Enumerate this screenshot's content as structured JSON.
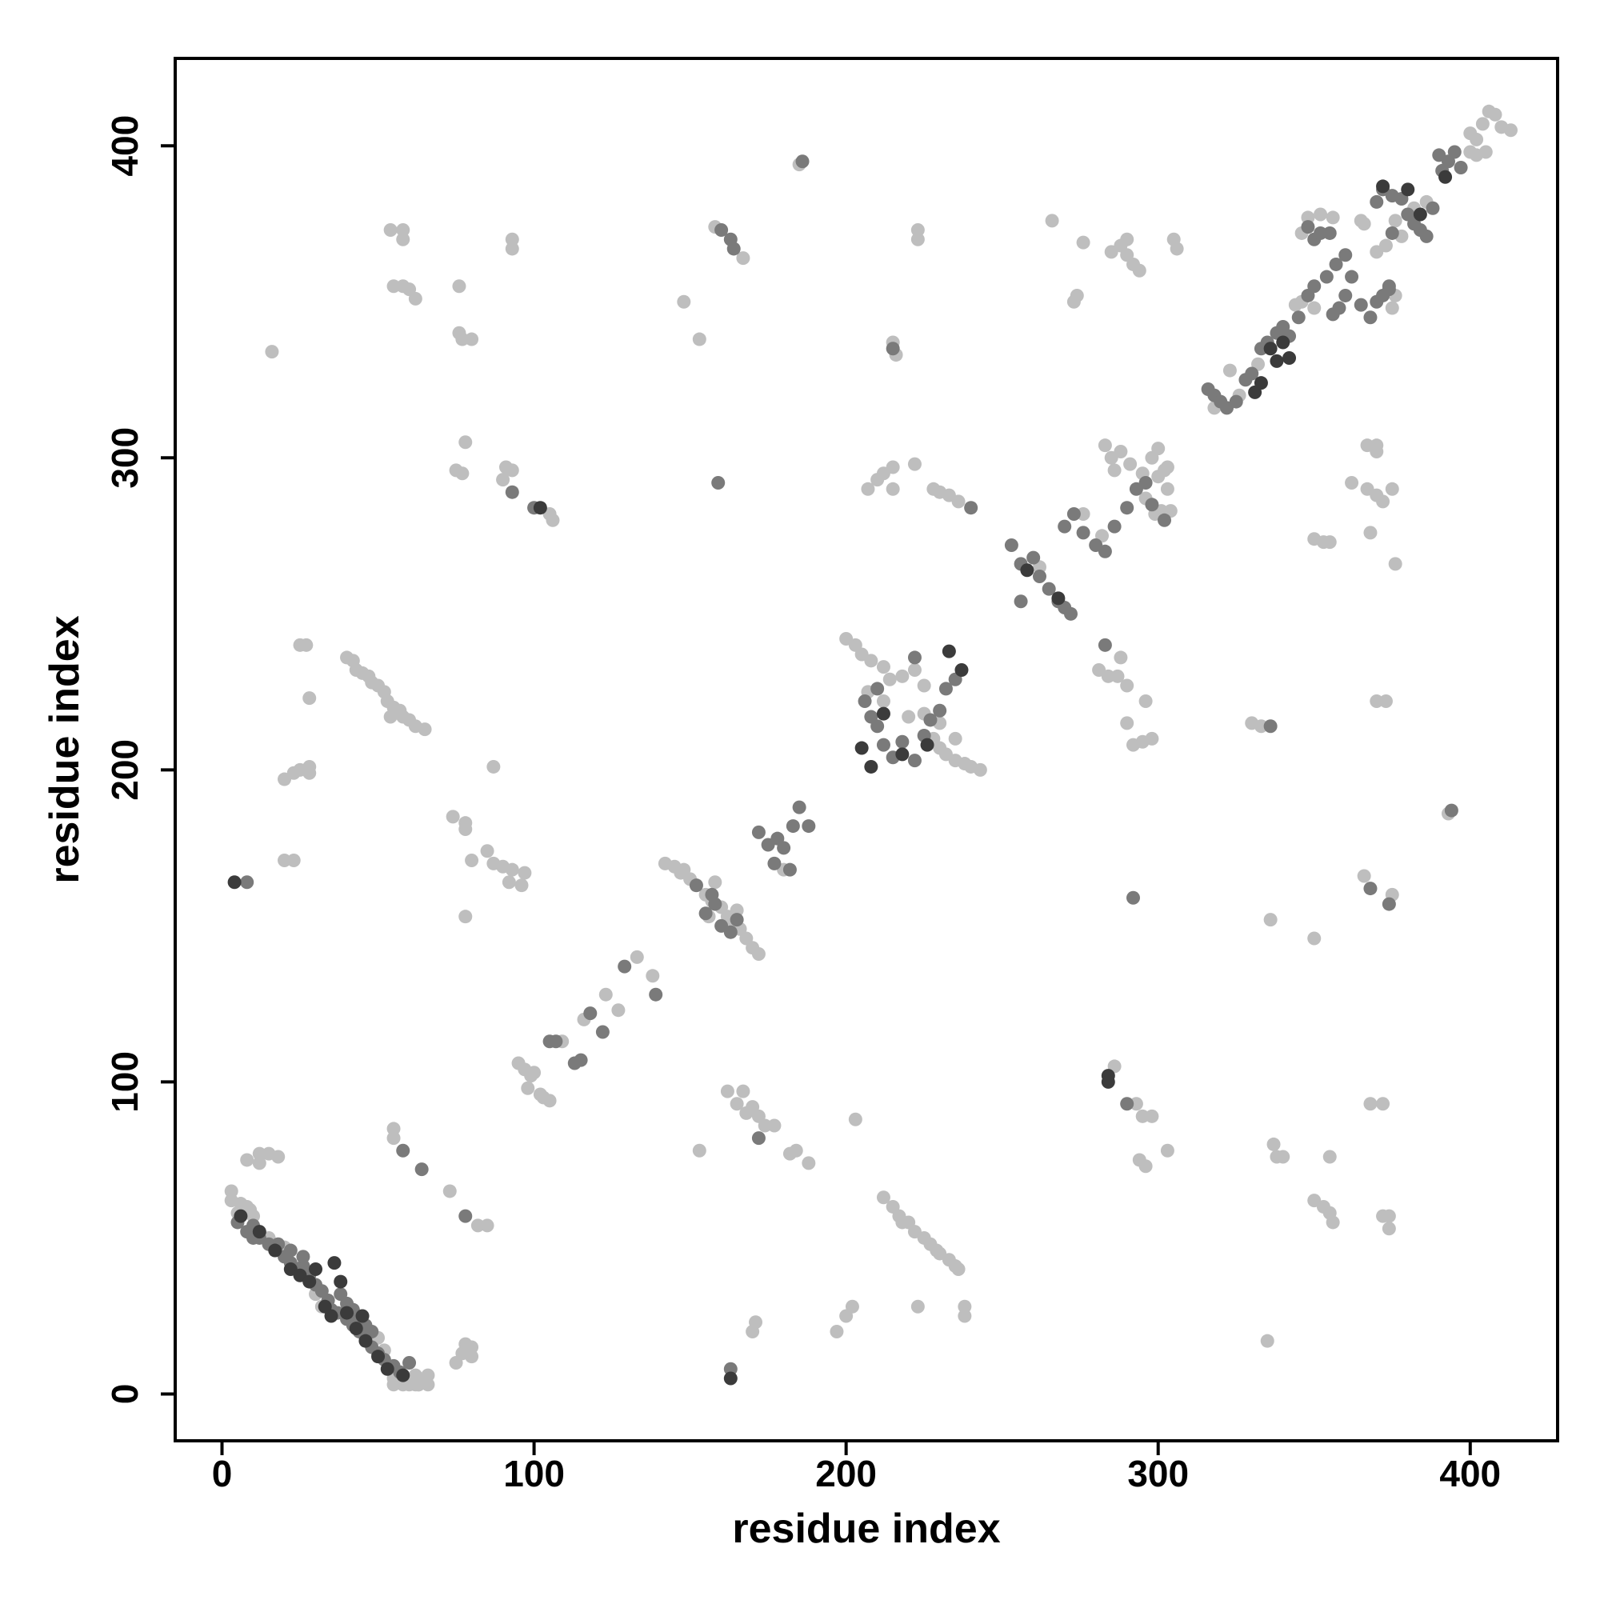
{
  "chart_data": {
    "type": "scatter",
    "x_label": "residue index",
    "y_label": "residue index",
    "xlim": [
      -15,
      428
    ],
    "ylim": [
      -15,
      428
    ],
    "xticks": [
      0,
      100,
      200,
      300,
      400
    ],
    "yticks": [
      0,
      100,
      200,
      300,
      400
    ],
    "grid": false,
    "series": [
      {
        "color": "#bebebe",
        "x": [
          3,
          5,
          8,
          10,
          55,
          58,
          62,
          65,
          63,
          8,
          12,
          15,
          18,
          12,
          75,
          77,
          78,
          80,
          80,
          55,
          55,
          73,
          82,
          85,
          16,
          54,
          58,
          58,
          55,
          58,
          60,
          62,
          76,
          76,
          77,
          80,
          93,
          93,
          75,
          77,
          78,
          91,
          93,
          90,
          105,
          106,
          25,
          27,
          28,
          20,
          23,
          25,
          28,
          28,
          20,
          23,
          74,
          78,
          78,
          80,
          85,
          87,
          90,
          93,
          97,
          96,
          92,
          78,
          87,
          40,
          42,
          43,
          45,
          47,
          48,
          50,
          52,
          53,
          55,
          57,
          58,
          60,
          62,
          65,
          54,
          95,
          97,
          99,
          100,
          98,
          102,
          103,
          105,
          109,
          116,
          123,
          127,
          133,
          138,
          142,
          145,
          147,
          150,
          152,
          155,
          157,
          160,
          162,
          164,
          166,
          168,
          170,
          172,
          148,
          158,
          156,
          165,
          180,
          200,
          203,
          205,
          208,
          212,
          214,
          218,
          222,
          225,
          228,
          230,
          232,
          235,
          238,
          240,
          243,
          207,
          212,
          230,
          235,
          225,
          220,
          203,
          202,
          200,
          197,
          171,
          170,
          184,
          182,
          188,
          162,
          167,
          165,
          170,
          172,
          168,
          174,
          177,
          153,
          212,
          215,
          217,
          220,
          222,
          225,
          227,
          229,
          230,
          233,
          235,
          236,
          218,
          223,
          238,
          238,
          148,
          153,
          158,
          167,
          185,
          223,
          223,
          215,
          216,
          207,
          210,
          212,
          215,
          215,
          222,
          228,
          230,
          233,
          236,
          266,
          273,
          274,
          276,
          285,
          288,
          290,
          292,
          294,
          290,
          305,
          306,
          281,
          284,
          287,
          290,
          288,
          296,
          290,
          292,
          295,
          298,
          262,
          276,
          282,
          285,
          288,
          291,
          295,
          298,
          300,
          302,
          303,
          286,
          283,
          296,
          299,
          301,
          304,
          303,
          300,
          286,
          293,
          295,
          298,
          294,
          296,
          303,
          335,
          337,
          338,
          340,
          336,
          355,
          350,
          353,
          355,
          356,
          350,
          330,
          333,
          370,
          373,
          372,
          374,
          374,
          368,
          372,
          366,
          375,
          393,
          350,
          353,
          355,
          367,
          370,
          372,
          375,
          367,
          370,
          370,
          368,
          376,
          362,
          318,
          323,
          326,
          332,
          344,
          346,
          348,
          352,
          356,
          366,
          370,
          373,
          376,
          378,
          382,
          386,
          400,
          402,
          404,
          406,
          408,
          410,
          413,
          400,
          402,
          405,
          346,
          350,
          365,
          375,
          376,
          3,
          6,
          9,
          15,
          20,
          30,
          32,
          50,
          52,
          58,
          60,
          63,
          66,
          66,
          55,
          62
        ],
        "values": [
          62,
          58,
          60,
          57,
          5,
          3,
          3,
          5,
          3,
          75,
          77,
          77,
          76,
          74,
          10,
          13,
          16,
          15,
          12,
          85,
          82,
          65,
          54,
          54,
          334,
          373,
          373,
          370,
          355,
          355,
          354,
          351,
          355,
          340,
          338,
          338,
          370,
          367,
          296,
          295,
          305,
          297,
          296,
          293,
          282,
          280,
          240,
          240,
          223,
          197,
          199,
          200,
          201,
          199,
          171,
          171,
          185,
          183,
          181,
          171,
          174,
          170,
          169,
          168,
          167,
          163,
          164,
          153,
          201,
          236,
          235,
          232,
          231,
          230,
          228,
          227,
          225,
          222,
          220,
          219,
          217,
          216,
          214,
          213,
          217,
          106,
          104,
          102,
          103,
          98,
          96,
          95,
          94,
          113,
          120,
          128,
          123,
          140,
          134,
          170,
          169,
          167,
          165,
          163,
          160,
          158,
          156,
          153,
          151,
          149,
          146,
          143,
          141,
          168,
          164,
          153,
          155,
          168,
          242,
          240,
          237,
          235,
          233,
          229,
          230,
          232,
          218,
          210,
          207,
          205,
          203,
          202,
          201,
          200,
          225,
          222,
          215,
          210,
          227,
          217,
          88,
          28,
          25,
          20,
          23,
          20,
          78,
          77,
          74,
          97,
          97,
          93,
          92,
          89,
          90,
          86,
          86,
          78,
          63,
          60,
          57,
          55,
          52,
          50,
          48,
          46,
          45,
          43,
          41,
          40,
          55,
          28,
          28,
          25,
          350,
          338,
          374,
          364,
          394,
          373,
          370,
          337,
          333,
          290,
          293,
          295,
          297,
          290,
          298,
          290,
          289,
          288,
          286,
          376,
          350,
          352,
          369,
          366,
          368,
          365,
          362,
          360,
          370,
          370,
          367,
          232,
          230,
          230,
          227,
          236,
          222,
          215,
          208,
          209,
          210,
          265,
          282,
          275,
          300,
          302,
          298,
          295,
          300,
          303,
          296,
          290,
          296,
          304,
          287,
          282,
          283,
          283,
          297,
          294,
          105,
          93,
          89,
          89,
          75,
          73,
          78,
          17,
          80,
          76,
          76,
          152,
          76,
          62,
          60,
          58,
          55,
          146,
          215,
          214,
          222,
          222,
          57,
          57,
          53,
          93,
          93,
          166,
          160,
          186,
          274,
          273,
          273,
          290,
          288,
          286,
          290,
          304,
          304,
          302,
          276,
          266,
          292,
          316,
          328,
          320,
          330,
          349,
          350,
          377,
          378,
          377,
          375,
          366,
          368,
          376,
          371,
          380,
          382,
          404,
          402,
          407,
          411,
          410,
          406,
          405,
          398,
          397,
          398,
          372,
          348,
          376,
          348,
          352,
          65,
          61,
          59,
          50,
          47,
          32,
          28,
          18,
          14,
          5,
          3,
          3,
          3,
          6,
          3,
          6
        ]
      },
      {
        "color": "#7a7a7a",
        "x": [
          58,
          64,
          78,
          93,
          100,
          8,
          105,
          107,
          113,
          115,
          118,
          122,
          129,
          139,
          152,
          157,
          155,
          160,
          163,
          165,
          158,
          172,
          175,
          178,
          180,
          183,
          185,
          188,
          177,
          182,
          172,
          163,
          206,
          208,
          210,
          212,
          215,
          218,
          222,
          225,
          227,
          230,
          232,
          235,
          210,
          222,
          159,
          160,
          163,
          164,
          186,
          215,
          240,
          283,
          253,
          256,
          260,
          262,
          265,
          268,
          270,
          272,
          270,
          273,
          276,
          280,
          283,
          286,
          290,
          293,
          296,
          298,
          302,
          256,
          290,
          336,
          368,
          374,
          394,
          292,
          316,
          318,
          320,
          322,
          325,
          328,
          330,
          333,
          335,
          338,
          340,
          342,
          345,
          348,
          350,
          354,
          357,
          360,
          350,
          352,
          348,
          355,
          356,
          358,
          360,
          362,
          365,
          368,
          370,
          372,
          374,
          370,
          372,
          375,
          378,
          380,
          382,
          384,
          386,
          388,
          375,
          391,
          393,
          395,
          397,
          390,
          374,
          5,
          8,
          10,
          12,
          15,
          17,
          20,
          22,
          24,
          26,
          28,
          30,
          32,
          34,
          35,
          37,
          40,
          42,
          44,
          46,
          48,
          50,
          52,
          55,
          57,
          60,
          38,
          40,
          42,
          44,
          46,
          48,
          10,
          18,
          22,
          26
        ],
        "values": [
          78,
          72,
          57,
          289,
          284,
          164,
          113,
          113,
          106,
          107,
          122,
          116,
          137,
          128,
          163,
          160,
          154,
          150,
          148,
          152,
          157,
          180,
          176,
          178,
          175,
          182,
          188,
          182,
          170,
          168,
          82,
          8,
          222,
          217,
          214,
          208,
          204,
          209,
          203,
          211,
          216,
          219,
          226,
          229,
          226,
          236,
          292,
          373,
          370,
          367,
          395,
          335,
          284,
          240,
          272,
          266,
          268,
          262,
          258,
          254,
          252,
          250,
          278,
          282,
          276,
          272,
          270,
          278,
          284,
          290,
          292,
          285,
          280,
          254,
          93,
          214,
          162,
          157,
          187,
          159,
          322,
          320,
          318,
          316,
          318,
          325,
          327,
          335,
          337,
          340,
          342,
          339,
          345,
          352,
          355,
          358,
          362,
          365,
          370,
          372,
          374,
          372,
          346,
          348,
          352,
          358,
          349,
          345,
          350,
          352,
          355,
          382,
          386,
          384,
          383,
          378,
          375,
          373,
          371,
          380,
          372,
          392,
          395,
          398,
          393,
          397,
          354,
          55,
          52,
          54,
          50,
          48,
          46,
          44,
          42,
          40,
          41,
          38,
          35,
          33,
          30,
          27,
          26,
          24,
          22,
          20,
          18,
          15,
          13,
          11,
          9,
          7,
          10,
          32,
          29,
          27,
          24,
          22,
          20,
          50,
          48,
          46,
          44
        ]
      },
      {
        "color": "#3b3b3b",
        "x": [
          102,
          4,
          205,
          208,
          218,
          233,
          237,
          226,
          212,
          163,
          284,
          284,
          258,
          268,
          331,
          333,
          336,
          338,
          340,
          342,
          372,
          380,
          384,
          392,
          6,
          12,
          17,
          22,
          25,
          28,
          30,
          36,
          38,
          35,
          33,
          40,
          43,
          46,
          50,
          53,
          58,
          45
        ],
        "values": [
          284,
          164,
          207,
          201,
          205,
          238,
          232,
          208,
          218,
          5,
          102,
          100,
          264,
          255,
          321,
          324,
          335,
          331,
          337,
          332,
          387,
          386,
          378,
          390,
          57,
          52,
          46,
          40,
          38,
          36,
          40,
          42,
          36,
          25,
          28,
          26,
          21,
          17,
          12,
          8,
          6,
          25
        ]
      }
    ]
  }
}
